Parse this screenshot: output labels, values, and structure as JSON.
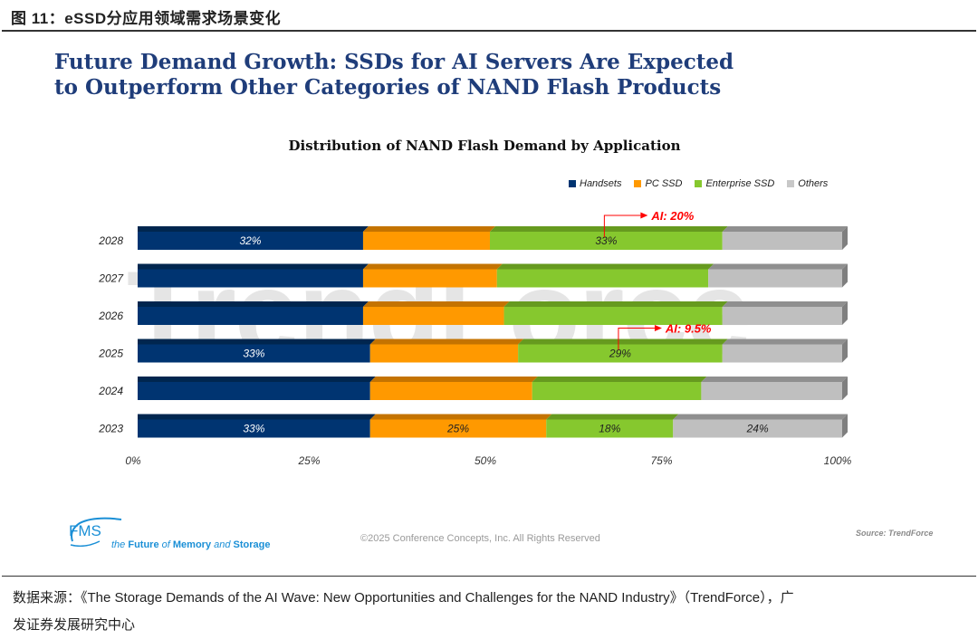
{
  "figure": {
    "header": "图 11：eSSD分应用领域需求场景变化",
    "footnote_line1": "数据来源：《The Storage Demands of the AI Wave: New Opportunities and Challenges for the NAND Industry》（TrendForce），广",
    "footnote_line2": "发证券发展研究中心"
  },
  "slide": {
    "title_line1": "Future Demand Growth: SSDs for AI Servers Are Expected",
    "title_line2": "to Outperform Other Categories of NAND Flash Products",
    "watermark": "TrendForce",
    "logo_text": "FMS",
    "tagline_1": "the ",
    "tagline_2": "Future",
    "tagline_3": " of ",
    "tagline_4": "Memory",
    "tagline_5": " and ",
    "tagline_6": "Storage",
    "copyright": "©2025 Conference Concepts, Inc. All Rights Reserved",
    "source": "Source: TrendForce"
  },
  "chart_data": {
    "type": "bar",
    "orientation": "horizontal-stacked-100",
    "title": "Distribution of NAND Flash Demand by Application",
    "xlabel": "",
    "ylabel": "",
    "xlim": [
      0,
      100
    ],
    "x_ticks": [
      "0%",
      "25%",
      "50%",
      "75%",
      "100%"
    ],
    "legend_position": "top-right",
    "categories": [
      "2028",
      "2027",
      "2026",
      "2025",
      "2024",
      "2023"
    ],
    "series": [
      {
        "name": "Handsets",
        "color": "#003471",
        "values": [
          32,
          32,
          32,
          33,
          33,
          33
        ]
      },
      {
        "name": "PC SSD",
        "color": "#ff9900",
        "values": [
          18,
          19,
          20,
          21,
          23,
          25
        ]
      },
      {
        "name": "Enterprise SSD",
        "color": "#86c82e",
        "values": [
          33,
          30,
          31,
          29,
          24,
          18
        ]
      },
      {
        "name": "Others",
        "color": "#bfbfbf",
        "values": [
          17,
          19,
          17,
          17,
          20,
          24
        ]
      }
    ],
    "data_labels": [
      {
        "category": "2028",
        "series": "Handsets",
        "text": "32%"
      },
      {
        "category": "2028",
        "series": "Enterprise SSD",
        "text": "33%"
      },
      {
        "category": "2025",
        "series": "Handsets",
        "text": "33%"
      },
      {
        "category": "2025",
        "series": "Enterprise SSD",
        "text": "29%"
      },
      {
        "category": "2023",
        "series": "Handsets",
        "text": "33%"
      },
      {
        "category": "2023",
        "series": "PC SSD",
        "text": "25%"
      },
      {
        "category": "2023",
        "series": "Enterprise SSD",
        "text": "18%"
      },
      {
        "category": "2023",
        "series": "Others",
        "text": "24%"
      }
    ],
    "annotations": [
      {
        "category": "2028",
        "series": "Enterprise SSD",
        "text": "AI: 20%",
        "color": "#ff0000"
      },
      {
        "category": "2025",
        "series": "Enterprise SSD",
        "text": "AI: 9.5%",
        "color": "#ff0000"
      }
    ]
  }
}
